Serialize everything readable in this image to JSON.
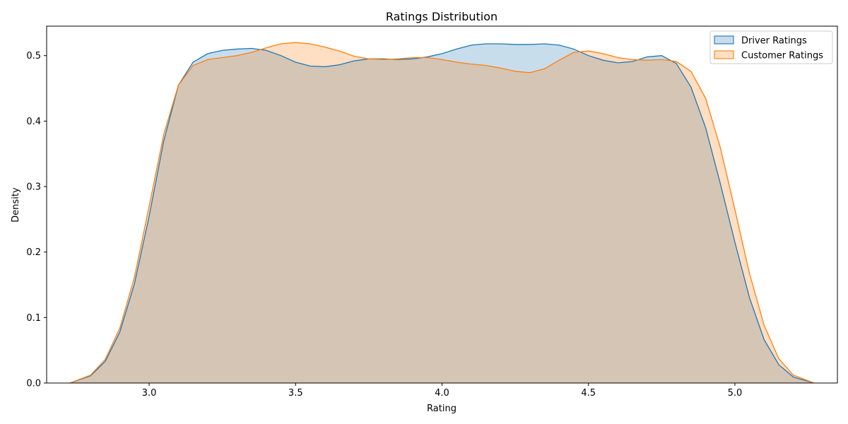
{
  "chart_data": {
    "type": "area",
    "title": "Ratings Distribution",
    "xlabel": "Rating",
    "ylabel": "Density",
    "xlim": [
      2.65,
      5.35
    ],
    "ylim": [
      0,
      0.545
    ],
    "xticks": [
      3.0,
      3.5,
      4.0,
      4.5,
      5.0
    ],
    "xtick_labels": [
      "3.0",
      "3.5",
      "4.0",
      "4.5",
      "5.0"
    ],
    "yticks": [
      0.0,
      0.1,
      0.2,
      0.3,
      0.4,
      0.5
    ],
    "ytick_labels": [
      "0.0",
      "0.1",
      "0.2",
      "0.3",
      "0.4",
      "0.5"
    ],
    "grid": false,
    "legend_position": "top-right",
    "series": [
      {
        "name": "Driver Ratings",
        "color": "#1f77b4",
        "x": [
          2.73,
          2.8,
          2.85,
          2.9,
          2.95,
          3.0,
          3.05,
          3.1,
          3.15,
          3.2,
          3.25,
          3.3,
          3.35,
          3.4,
          3.45,
          3.5,
          3.55,
          3.6,
          3.65,
          3.7,
          3.75,
          3.8,
          3.85,
          3.9,
          3.95,
          4.0,
          4.05,
          4.1,
          4.15,
          4.2,
          4.25,
          4.3,
          4.35,
          4.4,
          4.45,
          4.5,
          4.55,
          4.6,
          4.65,
          4.7,
          4.75,
          4.8,
          4.85,
          4.9,
          4.95,
          5.0,
          5.05,
          5.1,
          5.15,
          5.2,
          5.27
        ],
        "y": [
          0.0,
          0.011,
          0.033,
          0.078,
          0.152,
          0.255,
          0.37,
          0.455,
          0.49,
          0.503,
          0.508,
          0.51,
          0.511,
          0.508,
          0.5,
          0.49,
          0.484,
          0.483,
          0.486,
          0.492,
          0.495,
          0.495,
          0.494,
          0.495,
          0.498,
          0.503,
          0.51,
          0.516,
          0.518,
          0.518,
          0.517,
          0.517,
          0.518,
          0.516,
          0.51,
          0.5,
          0.493,
          0.489,
          0.491,
          0.498,
          0.5,
          0.488,
          0.452,
          0.39,
          0.305,
          0.215,
          0.13,
          0.066,
          0.028,
          0.009,
          0.0
        ]
      },
      {
        "name": "Customer Ratings",
        "color": "#ff7f0e",
        "x": [
          2.73,
          2.8,
          2.85,
          2.9,
          2.95,
          3.0,
          3.05,
          3.1,
          3.15,
          3.2,
          3.25,
          3.3,
          3.35,
          3.4,
          3.45,
          3.5,
          3.55,
          3.6,
          3.65,
          3.7,
          3.75,
          3.8,
          3.85,
          3.9,
          3.95,
          4.0,
          4.05,
          4.1,
          4.15,
          4.2,
          4.25,
          4.3,
          4.35,
          4.4,
          4.45,
          4.5,
          4.55,
          4.6,
          4.65,
          4.7,
          4.75,
          4.8,
          4.85,
          4.9,
          4.95,
          5.0,
          5.05,
          5.1,
          5.15,
          5.2,
          5.27
        ],
        "y": [
          0.0,
          0.012,
          0.036,
          0.084,
          0.162,
          0.27,
          0.38,
          0.455,
          0.485,
          0.494,
          0.497,
          0.5,
          0.505,
          0.512,
          0.518,
          0.52,
          0.518,
          0.513,
          0.507,
          0.499,
          0.495,
          0.494,
          0.495,
          0.497,
          0.497,
          0.494,
          0.49,
          0.487,
          0.485,
          0.481,
          0.476,
          0.474,
          0.48,
          0.493,
          0.505,
          0.507,
          0.503,
          0.497,
          0.494,
          0.493,
          0.494,
          0.491,
          0.476,
          0.435,
          0.36,
          0.265,
          0.167,
          0.088,
          0.037,
          0.012,
          0.0
        ]
      }
    ]
  }
}
